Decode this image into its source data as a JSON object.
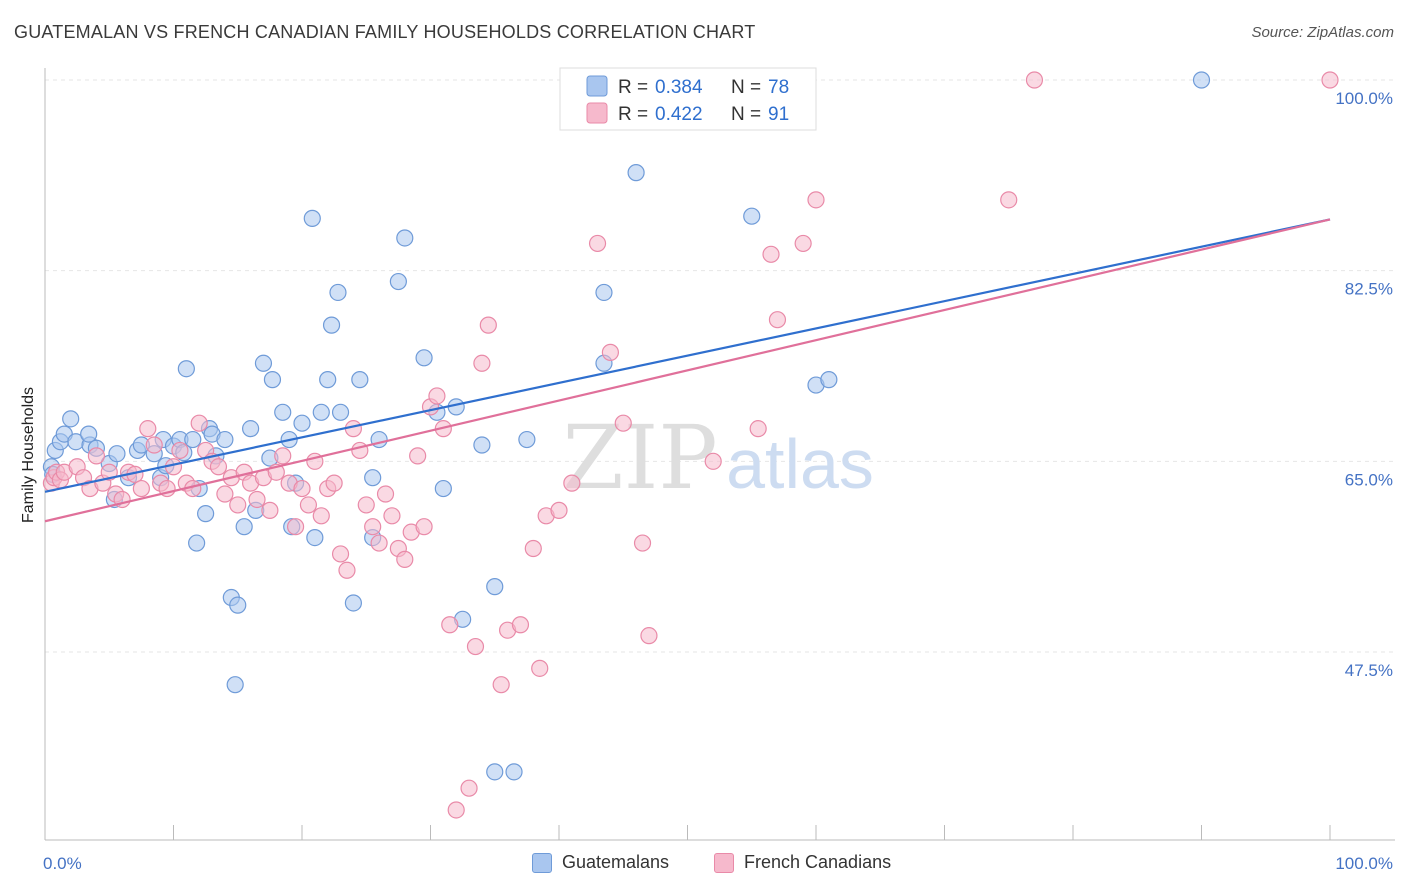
{
  "title": "GUATEMALAN VS FRENCH CANADIAN FAMILY HOUSEHOLDS CORRELATION CHART",
  "source": "Source: ZipAtlas.com",
  "watermark": {
    "zip": "ZIP",
    "atlas": "atlas"
  },
  "legend_top": [
    {
      "r_label": "R =",
      "r_value": "0.384",
      "n_label": "N =",
      "n_value": "78"
    },
    {
      "r_label": "R =",
      "r_value": "0.422",
      "n_label": "N =",
      "n_value": "91"
    }
  ],
  "legend_bottom": [
    "Guatemalans",
    "French Canadians"
  ],
  "colors": {
    "blue_fill": "#a9c6ef",
    "blue_stroke": "#6f9bd8",
    "blue_line": "#2f6fce",
    "pink_fill": "#f6b9cc",
    "pink_stroke": "#e98aa8",
    "pink_line": "#e0709a",
    "tick_text": "#4472c4",
    "grid": "#e6e6e6"
  },
  "chart_data": {
    "type": "scatter",
    "title": "GUATEMALAN VS FRENCH CANADIAN FAMILY HOUSEHOLDS CORRELATION CHART",
    "xlabel": "",
    "ylabel": "Family Households",
    "x_tick_labels": [
      "0.0%",
      "100.0%"
    ],
    "y_tick_labels": [
      "100.0%",
      "82.5%",
      "65.0%",
      "47.5%"
    ],
    "y_ticks": [
      100.0,
      82.5,
      65.0,
      47.5
    ],
    "xlim": [
      0,
      100
    ],
    "ylim": [
      31.5,
      101.5
    ],
    "grid": true,
    "series": [
      {
        "name": "Guatemalans",
        "color": "#6f9bd8",
        "R": 0.384,
        "N": 78,
        "trend": {
          "x": [
            0,
            100
          ],
          "y": [
            62.2,
            87.2
          ]
        },
        "points": [
          [
            0.5,
            64.5
          ],
          [
            0.8,
            66.0
          ],
          [
            0.6,
            63.8
          ],
          [
            1.2,
            66.8
          ],
          [
            1.5,
            67.5
          ],
          [
            2.0,
            68.9
          ],
          [
            2.4,
            66.8
          ],
          [
            3.5,
            66.5
          ],
          [
            4.0,
            66.2
          ],
          [
            3.4,
            67.5
          ],
          [
            5.0,
            64.8
          ],
          [
            5.4,
            61.5
          ],
          [
            5.6,
            65.7
          ],
          [
            6.5,
            63.5
          ],
          [
            7.2,
            66.0
          ],
          [
            7.5,
            66.5
          ],
          [
            8.5,
            65.7
          ],
          [
            9.0,
            63.5
          ],
          [
            9.2,
            67.0
          ],
          [
            9.4,
            64.6
          ],
          [
            10.0,
            66.4
          ],
          [
            10.5,
            67.0
          ],
          [
            10.8,
            65.8
          ],
          [
            11.0,
            73.5
          ],
          [
            11.5,
            67.0
          ],
          [
            11.8,
            57.5
          ],
          [
            12.0,
            62.5
          ],
          [
            12.5,
            60.2
          ],
          [
            12.8,
            68.0
          ],
          [
            13.0,
            67.5
          ],
          [
            13.3,
            65.5
          ],
          [
            14.0,
            67.0
          ],
          [
            14.5,
            52.5
          ],
          [
            14.8,
            44.5
          ],
          [
            15.0,
            51.8
          ],
          [
            15.5,
            59.0
          ],
          [
            16.0,
            68.0
          ],
          [
            16.4,
            60.5
          ],
          [
            17.0,
            74.0
          ],
          [
            17.5,
            65.3
          ],
          [
            17.7,
            72.5
          ],
          [
            18.5,
            69.5
          ],
          [
            19.0,
            67.0
          ],
          [
            19.2,
            59.0
          ],
          [
            19.5,
            63.0
          ],
          [
            20.0,
            68.5
          ],
          [
            20.8,
            87.3
          ],
          [
            21.0,
            58.0
          ],
          [
            21.5,
            69.5
          ],
          [
            22.0,
            72.5
          ],
          [
            22.3,
            77.5
          ],
          [
            22.8,
            80.5
          ],
          [
            23.0,
            69.5
          ],
          [
            24.0,
            52.0
          ],
          [
            24.5,
            72.5
          ],
          [
            25.5,
            63.5
          ],
          [
            25.5,
            58.0
          ],
          [
            26.0,
            67.0
          ],
          [
            27.5,
            81.5
          ],
          [
            28.0,
            85.5
          ],
          [
            29.5,
            74.5
          ],
          [
            30.5,
            69.5
          ],
          [
            31.0,
            62.5
          ],
          [
            32.0,
            70.0
          ],
          [
            32.5,
            50.5
          ],
          [
            34.0,
            66.5
          ],
          [
            35.0,
            53.5
          ],
          [
            35.0,
            36.5
          ],
          [
            36.5,
            36.5
          ],
          [
            37.5,
            67.0
          ],
          [
            43.5,
            80.5
          ],
          [
            43.5,
            74.0
          ],
          [
            46.0,
            91.5
          ],
          [
            55.0,
            87.5
          ],
          [
            56.0,
            100.0
          ],
          [
            60.0,
            72.0
          ],
          [
            61.0,
            72.5
          ],
          [
            90.0,
            100.0
          ]
        ],
        "radius_px": 8
      },
      {
        "name": "French Canadians",
        "color": "#e98aa8",
        "R": 0.422,
        "N": 91,
        "trend": {
          "x": [
            0,
            100
          ],
          "y": [
            59.5,
            87.2
          ]
        },
        "points": [
          [
            0.5,
            63.0
          ],
          [
            0.7,
            63.5
          ],
          [
            0.9,
            64.0
          ],
          [
            1.2,
            63.3
          ],
          [
            1.5,
            64.0
          ],
          [
            2.5,
            64.5
          ],
          [
            3.0,
            63.5
          ],
          [
            3.5,
            62.5
          ],
          [
            4.0,
            65.5
          ],
          [
            4.5,
            63.0
          ],
          [
            5.0,
            64.0
          ],
          [
            5.5,
            62.0
          ],
          [
            6.0,
            61.5
          ],
          [
            6.5,
            64.0
          ],
          [
            7.0,
            63.8
          ],
          [
            7.5,
            62.5
          ],
          [
            8.0,
            68.0
          ],
          [
            8.5,
            66.5
          ],
          [
            9.0,
            63.0
          ],
          [
            9.5,
            62.5
          ],
          [
            10.0,
            64.5
          ],
          [
            10.5,
            66.0
          ],
          [
            11.0,
            63.0
          ],
          [
            11.5,
            62.5
          ],
          [
            12.0,
            68.5
          ],
          [
            12.5,
            66.0
          ],
          [
            13.0,
            65.0
          ],
          [
            13.5,
            64.5
          ],
          [
            14.0,
            62.0
          ],
          [
            14.5,
            63.5
          ],
          [
            15.0,
            61.0
          ],
          [
            15.5,
            64.0
          ],
          [
            16.0,
            63.0
          ],
          [
            16.5,
            61.5
          ],
          [
            17.0,
            63.5
          ],
          [
            17.5,
            60.5
          ],
          [
            18.0,
            64.0
          ],
          [
            18.5,
            65.5
          ],
          [
            19.0,
            63.0
          ],
          [
            19.5,
            59.0
          ],
          [
            20.0,
            62.5
          ],
          [
            20.5,
            61.0
          ],
          [
            21.0,
            65.0
          ],
          [
            21.5,
            60.0
          ],
          [
            22.0,
            62.5
          ],
          [
            22.5,
            63.0
          ],
          [
            23.0,
            56.5
          ],
          [
            23.5,
            55.0
          ],
          [
            24.0,
            68.0
          ],
          [
            24.5,
            66.0
          ],
          [
            25.0,
            61.0
          ],
          [
            25.5,
            59.0
          ],
          [
            26.0,
            57.5
          ],
          [
            26.5,
            62.0
          ],
          [
            27.0,
            60.0
          ],
          [
            27.5,
            57.0
          ],
          [
            28.0,
            56.0
          ],
          [
            28.5,
            58.5
          ],
          [
            29.0,
            65.5
          ],
          [
            29.5,
            59.0
          ],
          [
            30.0,
            70.0
          ],
          [
            30.5,
            71.0
          ],
          [
            31.0,
            68.0
          ],
          [
            31.5,
            50.0
          ],
          [
            32.0,
            33.0
          ],
          [
            33.0,
            35.0
          ],
          [
            33.5,
            48.0
          ],
          [
            34.0,
            74.0
          ],
          [
            34.5,
            77.5
          ],
          [
            35.5,
            44.5
          ],
          [
            36.0,
            49.5
          ],
          [
            37.0,
            50.0
          ],
          [
            38.0,
            57.0
          ],
          [
            38.5,
            46.0
          ],
          [
            39.0,
            60.0
          ],
          [
            40.0,
            60.5
          ],
          [
            41.0,
            63.0
          ],
          [
            43.0,
            85.0
          ],
          [
            44.0,
            75.0
          ],
          [
            45.0,
            68.5
          ],
          [
            46.5,
            57.5
          ],
          [
            47.0,
            49.0
          ],
          [
            52.0,
            65.0
          ],
          [
            55.5,
            68.0
          ],
          [
            56.5,
            84.0
          ],
          [
            57.0,
            78.0
          ],
          [
            59.0,
            85.0
          ],
          [
            60.0,
            89.0
          ],
          [
            75.0,
            89.0
          ],
          [
            77.0,
            100.0
          ],
          [
            100.0,
            100.0
          ]
        ],
        "radius_px": 8
      }
    ]
  }
}
